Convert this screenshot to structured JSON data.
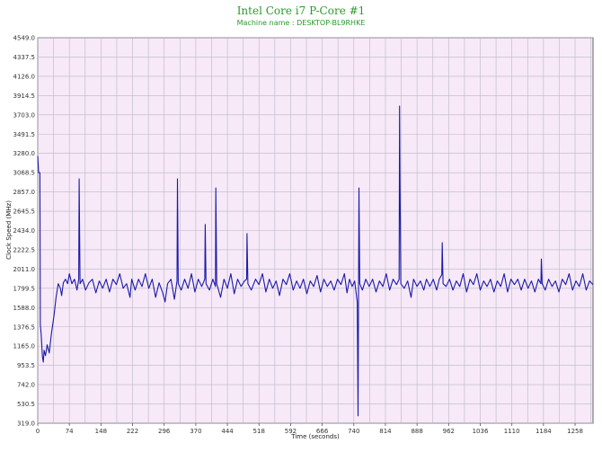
{
  "chart_data": {
    "type": "line",
    "title": "Intel Core i7 P-Core #1",
    "subtitle": "Machine name : DESKTOP-BL9RHKE",
    "xlabel": "Time (seconds)",
    "ylabel": "Clock Speed (MHz)",
    "xlim": [
      0,
      1300
    ],
    "ylim": [
      319.0,
      4549.0
    ],
    "x_ticks": [
      "0",
      "74",
      "148",
      "222",
      "296",
      "370",
      "444",
      "518",
      "592",
      "666",
      "740",
      "814",
      "888",
      "962",
      "1036",
      "1110",
      "1184",
      "1258"
    ],
    "y_ticks": [
      "4549.0",
      "4337.5",
      "4126.0",
      "3914.5",
      "3703.0",
      "3491.5",
      "3280.0",
      "3068.5",
      "2857.0",
      "2645.5",
      "2434.0",
      "2222.5",
      "2011.0",
      "1799.5",
      "1588.0",
      "1376.5",
      "1165.0",
      "953.5",
      "742.0",
      "530.5",
      "319.0"
    ],
    "grid": true,
    "legend": "none",
    "colors": {
      "background": "#f7e9f7",
      "grid": "#b8b8c8",
      "line": "#1a1aaa",
      "title": "#2a9a2a"
    },
    "series": [
      {
        "values": [
          [
            0,
            3250
          ],
          [
            2,
            3068
          ],
          [
            5,
            3068
          ],
          [
            6,
            1400
          ],
          [
            8,
            1300
          ],
          [
            11,
            1050
          ],
          [
            13,
            990
          ],
          [
            15,
            1120
          ],
          [
            18,
            1060
          ],
          [
            22,
            1180
          ],
          [
            27,
            1090
          ],
          [
            32,
            1300
          ],
          [
            38,
            1500
          ],
          [
            43,
            1700
          ],
          [
            48,
            1850
          ],
          [
            53,
            1800
          ],
          [
            56,
            1720
          ],
          [
            60,
            1860
          ],
          [
            65,
            1900
          ],
          [
            70,
            1850
          ],
          [
            74,
            1960
          ],
          [
            80,
            1850
          ],
          [
            86,
            1900
          ],
          [
            92,
            1780
          ],
          [
            96,
            1900
          ],
          [
            97,
            3000
          ],
          [
            99,
            1850
          ],
          [
            105,
            1900
          ],
          [
            112,
            1780
          ],
          [
            120,
            1860
          ],
          [
            128,
            1900
          ],
          [
            136,
            1750
          ],
          [
            144,
            1880
          ],
          [
            152,
            1800
          ],
          [
            160,
            1900
          ],
          [
            168,
            1760
          ],
          [
            176,
            1900
          ],
          [
            184,
            1840
          ],
          [
            192,
            1960
          ],
          [
            200,
            1800
          ],
          [
            208,
            1850
          ],
          [
            216,
            1700
          ],
          [
            220,
            1900
          ],
          [
            228,
            1780
          ],
          [
            236,
            1900
          ],
          [
            244,
            1820
          ],
          [
            252,
            1960
          ],
          [
            260,
            1800
          ],
          [
            268,
            1900
          ],
          [
            276,
            1700
          ],
          [
            284,
            1860
          ],
          [
            292,
            1760
          ],
          [
            298,
            1650
          ],
          [
            304,
            1850
          ],
          [
            312,
            1900
          ],
          [
            320,
            1680
          ],
          [
            326,
            1880
          ],
          [
            327,
            3000
          ],
          [
            329,
            1850
          ],
          [
            336,
            1780
          ],
          [
            344,
            1900
          ],
          [
            352,
            1800
          ],
          [
            360,
            1960
          ],
          [
            368,
            1760
          ],
          [
            376,
            1900
          ],
          [
            384,
            1820
          ],
          [
            391,
            1900
          ],
          [
            392,
            2500
          ],
          [
            394,
            1850
          ],
          [
            402,
            1780
          ],
          [
            410,
            1900
          ],
          [
            416,
            1820
          ],
          [
            417,
            2900
          ],
          [
            419,
            1850
          ],
          [
            428,
            1700
          ],
          [
            436,
            1900
          ],
          [
            444,
            1800
          ],
          [
            452,
            1960
          ],
          [
            460,
            1740
          ],
          [
            468,
            1900
          ],
          [
            476,
            1820
          ],
          [
            484,
            1880
          ],
          [
            489,
            1900
          ],
          [
            490,
            2400
          ],
          [
            492,
            1850
          ],
          [
            500,
            1780
          ],
          [
            510,
            1900
          ],
          [
            518,
            1840
          ],
          [
            526,
            1960
          ],
          [
            534,
            1760
          ],
          [
            542,
            1900
          ],
          [
            550,
            1800
          ],
          [
            558,
            1880
          ],
          [
            566,
            1720
          ],
          [
            574,
            1900
          ],
          [
            582,
            1840
          ],
          [
            590,
            1960
          ],
          [
            598,
            1780
          ],
          [
            606,
            1880
          ],
          [
            614,
            1800
          ],
          [
            622,
            1900
          ],
          [
            630,
            1740
          ],
          [
            638,
            1880
          ],
          [
            646,
            1820
          ],
          [
            654,
            1940
          ],
          [
            662,
            1760
          ],
          [
            670,
            1900
          ],
          [
            678,
            1820
          ],
          [
            686,
            1880
          ],
          [
            694,
            1780
          ],
          [
            702,
            1900
          ],
          [
            710,
            1840
          ],
          [
            718,
            1960
          ],
          [
            724,
            1750
          ],
          [
            730,
            1900
          ],
          [
            736,
            1820
          ],
          [
            742,
            1880
          ],
          [
            748,
            1650
          ],
          [
            750,
            400
          ],
          [
            752,
            2900
          ],
          [
            754,
            1850
          ],
          [
            760,
            1780
          ],
          [
            768,
            1900
          ],
          [
            776,
            1820
          ],
          [
            784,
            1900
          ],
          [
            792,
            1760
          ],
          [
            800,
            1880
          ],
          [
            808,
            1820
          ],
          [
            816,
            1960
          ],
          [
            824,
            1780
          ],
          [
            832,
            1900
          ],
          [
            840,
            1840
          ],
          [
            846,
            1900
          ],
          [
            847,
            3800
          ],
          [
            848,
            3100
          ],
          [
            850,
            1850
          ],
          [
            858,
            1800
          ],
          [
            866,
            1880
          ],
          [
            874,
            1700
          ],
          [
            880,
            1900
          ],
          [
            888,
            1820
          ],
          [
            896,
            1880
          ],
          [
            904,
            1780
          ],
          [
            910,
            1900
          ],
          [
            918,
            1820
          ],
          [
            926,
            1900
          ],
          [
            934,
            1780
          ],
          [
            940,
            1900
          ],
          [
            946,
            1950
          ],
          [
            947,
            2300
          ],
          [
            949,
            1850
          ],
          [
            956,
            1820
          ],
          [
            964,
            1900
          ],
          [
            972,
            1780
          ],
          [
            980,
            1880
          ],
          [
            988,
            1820
          ],
          [
            996,
            1960
          ],
          [
            1004,
            1760
          ],
          [
            1012,
            1900
          ],
          [
            1020,
            1840
          ],
          [
            1028,
            1960
          ],
          [
            1036,
            1780
          ],
          [
            1044,
            1880
          ],
          [
            1052,
            1820
          ],
          [
            1060,
            1900
          ],
          [
            1068,
            1760
          ],
          [
            1076,
            1880
          ],
          [
            1084,
            1820
          ],
          [
            1092,
            1960
          ],
          [
            1100,
            1760
          ],
          [
            1108,
            1900
          ],
          [
            1116,
            1840
          ],
          [
            1124,
            1900
          ],
          [
            1132,
            1780
          ],
          [
            1140,
            1900
          ],
          [
            1148,
            1800
          ],
          [
            1156,
            1880
          ],
          [
            1164,
            1760
          ],
          [
            1172,
            1900
          ],
          [
            1178,
            1850
          ],
          [
            1179,
            2120
          ],
          [
            1181,
            1850
          ],
          [
            1188,
            1780
          ],
          [
            1196,
            1900
          ],
          [
            1204,
            1820
          ],
          [
            1212,
            1880
          ],
          [
            1220,
            1760
          ],
          [
            1228,
            1900
          ],
          [
            1236,
            1840
          ],
          [
            1244,
            1960
          ],
          [
            1252,
            1780
          ],
          [
            1260,
            1880
          ],
          [
            1268,
            1820
          ],
          [
            1276,
            1960
          ],
          [
            1284,
            1780
          ],
          [
            1292,
            1880
          ],
          [
            1300,
            1840
          ]
        ]
      }
    ]
  }
}
